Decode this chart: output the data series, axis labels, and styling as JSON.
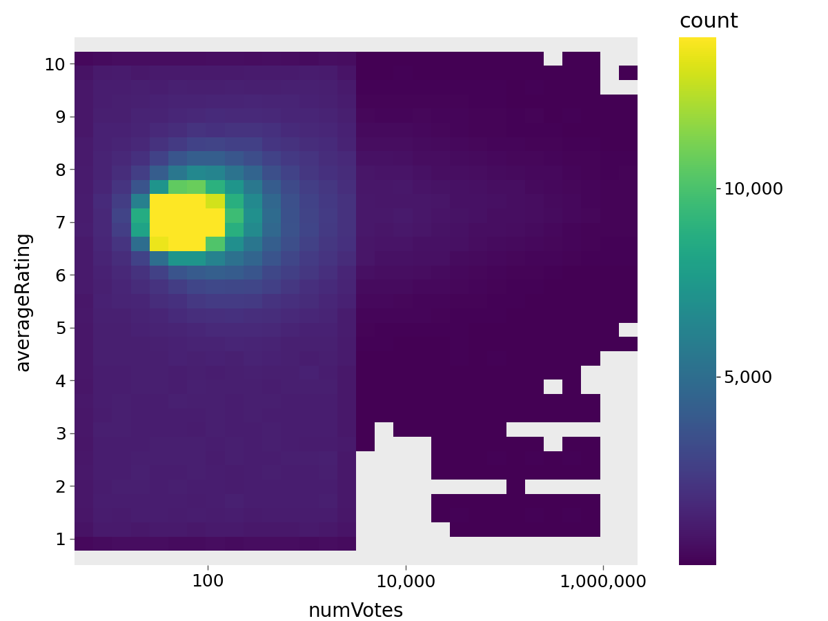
{
  "xlabel": "numVotes",
  "ylabel": "averageRating",
  "colorbar_label": "count",
  "colorbar_ticks": [
    5000,
    10000
  ],
  "colorbar_ticklabels": [
    "5,000",
    "10,000"
  ],
  "ylim": [
    0.5,
    10.5
  ],
  "yticks": [
    1,
    2,
    3,
    4,
    5,
    6,
    7,
    8,
    9,
    10
  ],
  "xtick_positions": [
    100,
    10000,
    1000000
  ],
  "xtick_labels": [
    "100",
    "10,000",
    "1,000,000"
  ],
  "vmin": 0,
  "vmax": 14000,
  "background_color": "#EBEBEB",
  "colormap": "viridis",
  "gridcolor": "white",
  "n_xbins": 30,
  "n_ybins": 37,
  "seed": 42,
  "font_size": 18,
  "axis_font_size": 20,
  "colorbar_title_fontsize": 22,
  "colorbar_tick_fontsize": 18
}
